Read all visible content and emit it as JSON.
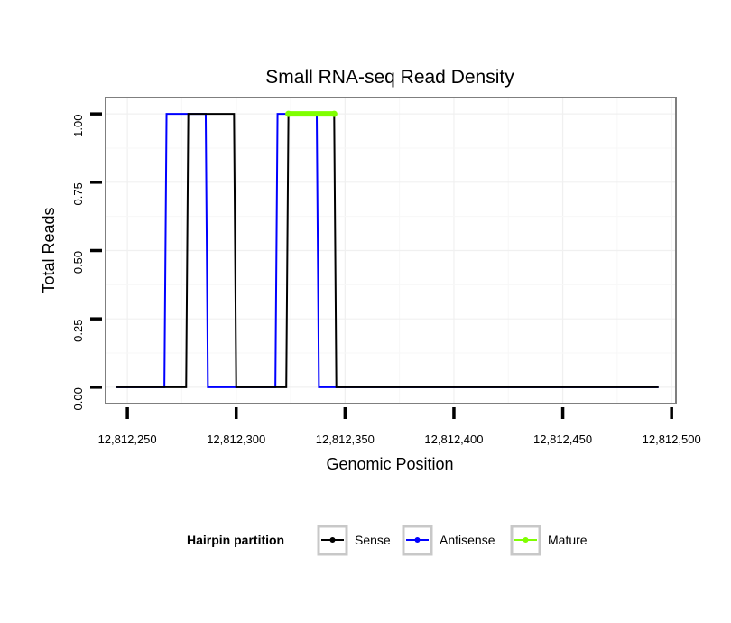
{
  "chart_data": {
    "type": "line",
    "title": "Small RNA-seq Read Density",
    "xlabel": "Genomic Position",
    "ylabel": "Total Reads",
    "xlim": [
      12812240,
      12812502
    ],
    "ylim": [
      -0.06,
      1.06
    ],
    "x_ticks": [
      12812250,
      12812300,
      12812350,
      12812400,
      12812450,
      12812500
    ],
    "x_tick_labels": [
      "12,812,250",
      "12,812,300",
      "12,812,350",
      "12,812,400",
      "12,812,450",
      "12,812,500"
    ],
    "y_ticks": [
      0,
      0.25,
      0.5,
      0.75,
      1
    ],
    "y_tick_labels": [
      "0.00",
      "0.25",
      "0.50",
      "0.75",
      "1.00"
    ],
    "grid": true,
    "legend_position": "bottom",
    "legend_title": "Hairpin partition",
    "series": [
      {
        "name": "Antisense",
        "color": "#0000ff",
        "x": [
          12812245,
          12812267,
          12812268,
          12812279,
          12812280,
          12812286,
          12812287,
          12812318,
          12812319,
          12812337,
          12812338,
          12812345,
          12812346,
          12812494
        ],
        "y": [
          0,
          0,
          1,
          1,
          1,
          1,
          0,
          0,
          1,
          1,
          0,
          0,
          0,
          0
        ]
      },
      {
        "name": "Sense",
        "color": "#000000",
        "x": [
          12812245,
          12812277,
          12812278,
          12812299,
          12812300,
          12812323,
          12812324,
          12812333,
          12812334,
          12812345,
          12812346,
          12812494
        ],
        "y": [
          0,
          0,
          1,
          1,
          0,
          0,
          1,
          1,
          1,
          1,
          0,
          0
        ]
      },
      {
        "name": "Mature",
        "color": "#7fff00",
        "x": [
          12812324,
          12812345
        ],
        "y": [
          1,
          1
        ]
      }
    ],
    "legend_entries": [
      {
        "name": "Sense",
        "color": "#000000"
      },
      {
        "name": "Antisense",
        "color": "#0000ff"
      },
      {
        "name": "Mature",
        "color": "#7fff00"
      }
    ]
  }
}
